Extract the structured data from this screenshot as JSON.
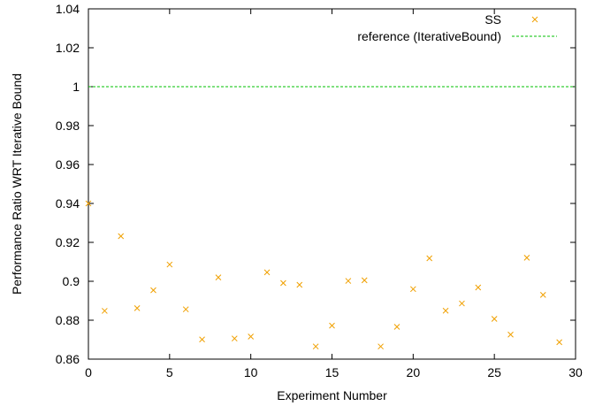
{
  "chart_data": {
    "type": "scatter",
    "xlabel": "Experiment Number",
    "ylabel": "Performance Ratio WRT Iterative Bound",
    "xlim": [
      0,
      30
    ],
    "ylim": [
      0.86,
      1.04
    ],
    "xticks": [
      0,
      5,
      10,
      15,
      20,
      25,
      30
    ],
    "yticks": [
      0.86,
      0.88,
      0.9,
      0.92,
      0.94,
      0.96,
      0.98,
      1,
      1.02,
      1.04
    ],
    "xtick_labels": [
      "0",
      "5",
      "10",
      "15",
      "20",
      "25",
      "30"
    ],
    "ytick_labels": [
      "0.86",
      "0.88",
      "0.9",
      "0.92",
      "0.94",
      "0.96",
      "0.98",
      "1",
      "1.02",
      "1.04"
    ],
    "legend_position": "top-right",
    "grid": false,
    "series": [
      {
        "name": "SS",
        "marker": "x",
        "color": "#f0a000",
        "x": [
          0,
          1,
          2,
          3,
          4,
          5,
          6,
          7,
          8,
          9,
          10,
          11,
          12,
          13,
          14,
          15,
          16,
          17,
          18,
          19,
          20,
          21,
          22,
          23,
          24,
          25,
          26,
          27,
          28,
          29
        ],
        "y": [
          0.94,
          0.8848,
          0.9232,
          0.8862,
          0.8954,
          0.9086,
          0.8856,
          0.8701,
          0.902,
          0.8706,
          0.8716,
          0.9046,
          0.8991,
          0.8982,
          0.8665,
          0.8772,
          0.9002,
          0.9005,
          0.8665,
          0.8766,
          0.896,
          0.9118,
          0.8849,
          0.8886,
          0.8968,
          0.8807,
          0.8726,
          0.9121,
          0.893,
          0.8687
        ]
      },
      {
        "name": "reference (IterativeBound)",
        "style": "dashed-line",
        "color": "#00c000",
        "y_constant": 1.0
      }
    ]
  }
}
